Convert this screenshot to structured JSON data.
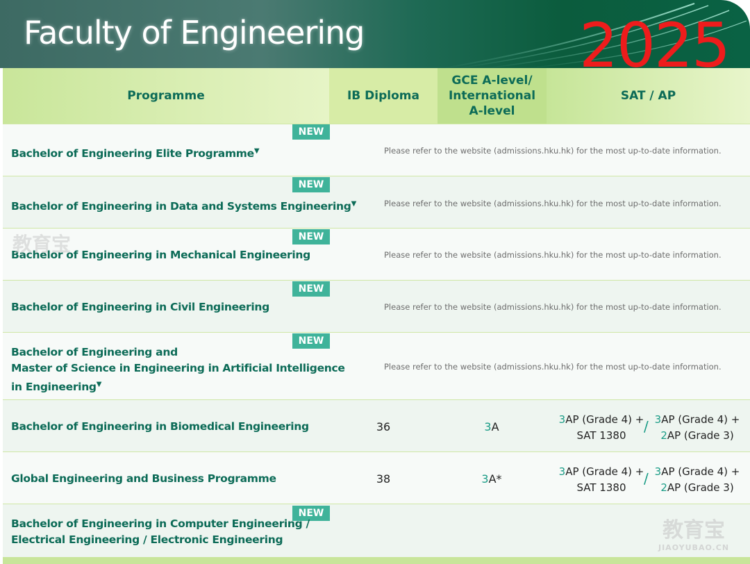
{
  "banner": {
    "title": "Faculty of Engineering",
    "year": "2025"
  },
  "columns": {
    "programme": "Programme",
    "ib": "IB Diploma",
    "gce_line1": "GCE A-level/",
    "gce_line2": "International",
    "gce_line3": "A-level",
    "sat": "SAT / AP"
  },
  "badge_label": "NEW",
  "note": "Please refer to the website (admissions.hku.hk) for the most up-to-date information.",
  "triangle": "▼",
  "rows": [
    {
      "name": "Bachelor of Engineering Elite Programme"
    },
    {
      "name": "Bachelor of Engineering in Data and Systems Engineering"
    },
    {
      "name": "Bachelor of Engineering in Mechanical Engineering"
    },
    {
      "name": "Bachelor of Engineering in Civil Engineering"
    },
    {
      "line1": "Bachelor of Engineering and",
      "line2": "Master of Science in Engineering in Artificial Intelligence",
      "line3": "in Engineering"
    },
    {
      "name": "Bachelor of Engineering in Biomedical Engineering",
      "ib": "36",
      "gce_num": "3",
      "gce_grade": "A",
      "opt1_num": "3",
      "opt1_a": "AP (Grade 4) +",
      "opt1_b": "SAT 1380",
      "opt2_num1": "3",
      "opt2_a": "AP (Grade 4) +",
      "opt2_num2": "2",
      "opt2_b": "AP (Grade 3)"
    },
    {
      "name": "Global Engineering and Business Programme",
      "ib": "38",
      "gce_num": "3",
      "gce_grade": "A*",
      "opt1_num": "3",
      "opt1_a": "AP (Grade 4) +",
      "opt1_b": "SAT 1380",
      "opt2_num1": "3",
      "opt2_a": "AP (Grade 4) +",
      "opt2_num2": "2",
      "opt2_b": "AP (Grade 3)"
    },
    {
      "line1": "Bachelor of Engineering in Computer Engineering /",
      "line2": "Electrical Engineering / Electronic Engineering"
    }
  ],
  "separator": "/",
  "watermark": {
    "cn": "教育宝",
    "en": "JIAOYUBAO.CN"
  }
}
